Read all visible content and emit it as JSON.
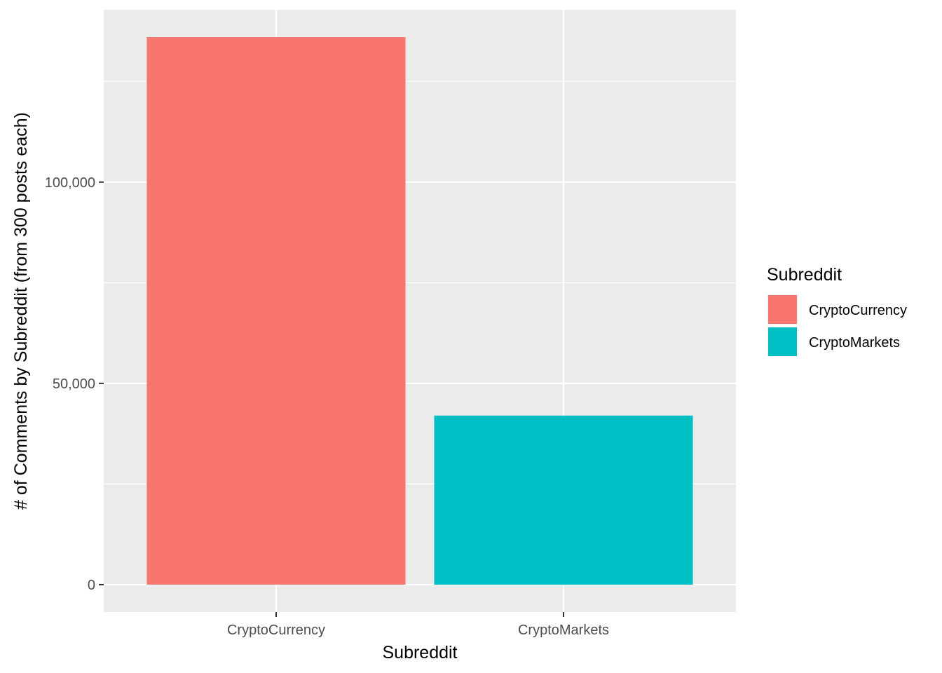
{
  "chart_data": {
    "type": "bar",
    "title": "",
    "xlabel": "Subreddit",
    "ylabel": "# of Comments by Subreddit (from 300 posts each)",
    "categories": [
      "CryptoCurrency",
      "CryptoMarkets"
    ],
    "values": [
      136000,
      42000
    ],
    "ylim": [
      -6800,
      142800
    ],
    "y_ticks": [
      0,
      50000,
      100000
    ],
    "y_tick_labels": [
      "0",
      "50,000",
      "100,000"
    ],
    "y_minor_ticks": [
      25000,
      75000,
      125000
    ],
    "grid": true,
    "legend": {
      "title": "Subreddit",
      "placement": "right",
      "entries": [
        "CryptoCurrency",
        "CryptoMarkets"
      ]
    },
    "colors": [
      "#F8766D",
      "#00BFC4"
    ],
    "panel_background": "#EBEBEB",
    "grid_color": "#FFFFFF"
  }
}
